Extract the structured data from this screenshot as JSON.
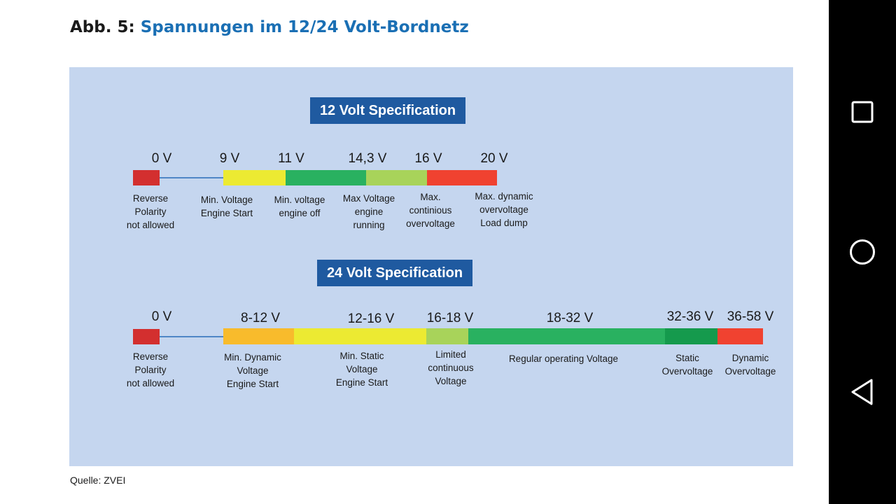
{
  "figure": {
    "prefix": "Abb. 5:",
    "title": "Spannungen im 12/24 Volt-Bordnetz",
    "source": "Quelle: ZVEI"
  },
  "spec12": {
    "title": "12 Volt Specification",
    "voltage_labels": [
      "0 V",
      "9 V",
      "11 V",
      "14,3 V",
      "16 V",
      "20 V"
    ],
    "segments": [
      {
        "name": "reverse",
        "color": "#d32f2f"
      },
      {
        "name": "min-voltage-engine-start",
        "color": "#ecea32"
      },
      {
        "name": "min-voltage-engine-off",
        "color": "#29b160"
      },
      {
        "name": "max-voltage-engine-running",
        "color": "#a8d35a"
      },
      {
        "name": "max-continuous-overvoltage",
        "color": "#f04230"
      }
    ],
    "descriptions": [
      "Reverse\nPolarity\nnot allowed",
      "Min. Voltage\nEngine Start",
      "Min. voltage\nengine off",
      "Max Voltage\nengine\nrunning",
      "Max.\ncontinious\novervoltage",
      "Max. dynamic\novervoltage\nLoad dump"
    ]
  },
  "spec24": {
    "title": "24 Volt Specification",
    "voltage_labels": [
      "0 V",
      "8-12 V",
      "12-16 V",
      "16-18 V",
      "18-32 V",
      "32-36 V",
      "36-58 V"
    ],
    "segments": [
      {
        "name": "reverse",
        "color": "#d32f2f"
      },
      {
        "name": "min-dynamic-voltage",
        "color": "#f8bb2c"
      },
      {
        "name": "min-static-voltage",
        "color": "#ecea32"
      },
      {
        "name": "limited-continuous",
        "color": "#a8d35a"
      },
      {
        "name": "regular-operating",
        "color": "#29b160"
      },
      {
        "name": "static-overvoltage",
        "color": "#159a4d"
      },
      {
        "name": "dynamic-overvoltage",
        "color": "#f04230"
      }
    ],
    "descriptions": [
      "Reverse\nPolarity\nnot allowed",
      "Min. Dynamic\nVoltage\nEngine Start",
      "Min. Static\nVoltage\nEngine Start",
      "Limited\ncontinuous\nVoltage",
      "Regular operating Voltage",
      "Static\nOvervoltage",
      "Dynamic\nOvervoltage"
    ]
  },
  "navigation": {
    "icons": [
      "recent-apps-icon",
      "home-icon",
      "back-icon"
    ]
  }
}
